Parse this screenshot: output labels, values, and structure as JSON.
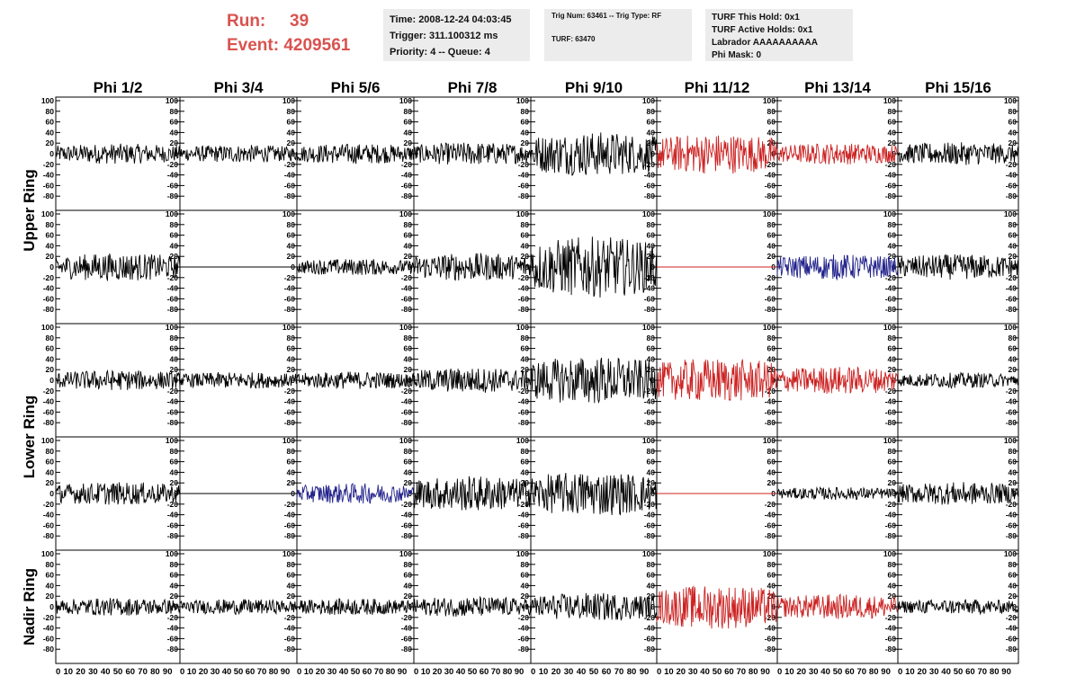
{
  "header": {
    "run_label": "Run:",
    "run_value": "39",
    "event_label": "Event:",
    "event_value": "4209561"
  },
  "info1": {
    "time": "Time: 2008-12-24 04:03:45",
    "trigger": "Trigger: 311.100312 ms",
    "priority": "Priority: 4 -- Queue: 4"
  },
  "info2": {
    "trig": "Trig Num: 63461 -- Trig Type: RF",
    "turf": "TURF: 63470"
  },
  "info3": {
    "hold": "TURF This Hold: 0x1",
    "active": "TURF Active Holds: 0x1",
    "labrador": "Labrador AAAAAAAAAA",
    "phimask": "Phi Mask: 0"
  },
  "colors": {
    "normal": "#000000",
    "triggered": "#cc2222",
    "masked": "#22228c"
  },
  "chart_data": {
    "type": "line",
    "columns": [
      "Phi 1/2",
      "Phi 3/4",
      "Phi 5/6",
      "Phi 7/8",
      "Phi 9/10",
      "Phi 11/12",
      "Phi 13/14",
      "Phi 15/16"
    ],
    "rings": [
      "Upper Ring",
      "Lower Ring",
      "Nadir Ring"
    ],
    "ylim": [
      -100,
      100
    ],
    "yticks": [
      -80,
      -60,
      -40,
      -20,
      0,
      20,
      40,
      60,
      80,
      100
    ],
    "xlim": [
      0,
      100
    ],
    "xticks": [
      0,
      10,
      20,
      30,
      40,
      50,
      60,
      70,
      80,
      90
    ],
    "panel_rows": [
      {
        "ring": "Upper Ring",
        "amplitudes": [
          16,
          14,
          16,
          18,
          35,
          32,
          17,
          18
        ],
        "colors": [
          "normal",
          "normal",
          "normal",
          "normal",
          "normal",
          "triggered",
          "triggered",
          "normal"
        ]
      },
      {
        "ring": "Upper Ring",
        "amplitudes": [
          22,
          0,
          13,
          22,
          48,
          0,
          20,
          20
        ],
        "colors": [
          "normal",
          "normal",
          "normal",
          "normal",
          "normal",
          "triggered",
          "masked",
          "normal"
        ]
      },
      {
        "ring": "Lower Ring",
        "amplitudes": [
          16,
          13,
          14,
          20,
          38,
          35,
          22,
          12
        ],
        "colors": [
          "normal",
          "normal",
          "normal",
          "normal",
          "normal",
          "triggered",
          "triggered",
          "normal"
        ]
      },
      {
        "ring": "Lower Ring",
        "amplitudes": [
          18,
          0,
          16,
          28,
          35,
          0,
          10,
          18
        ],
        "colors": [
          "normal",
          "normal",
          "masked",
          "normal",
          "normal",
          "triggered",
          "normal",
          "normal"
        ]
      },
      {
        "ring": "Nadir Ring",
        "amplitudes": [
          14,
          12,
          13,
          16,
          22,
          35,
          20,
          12
        ],
        "colors": [
          "normal",
          "normal",
          "normal",
          "normal",
          "normal",
          "triggered",
          "triggered",
          "normal"
        ]
      }
    ]
  }
}
